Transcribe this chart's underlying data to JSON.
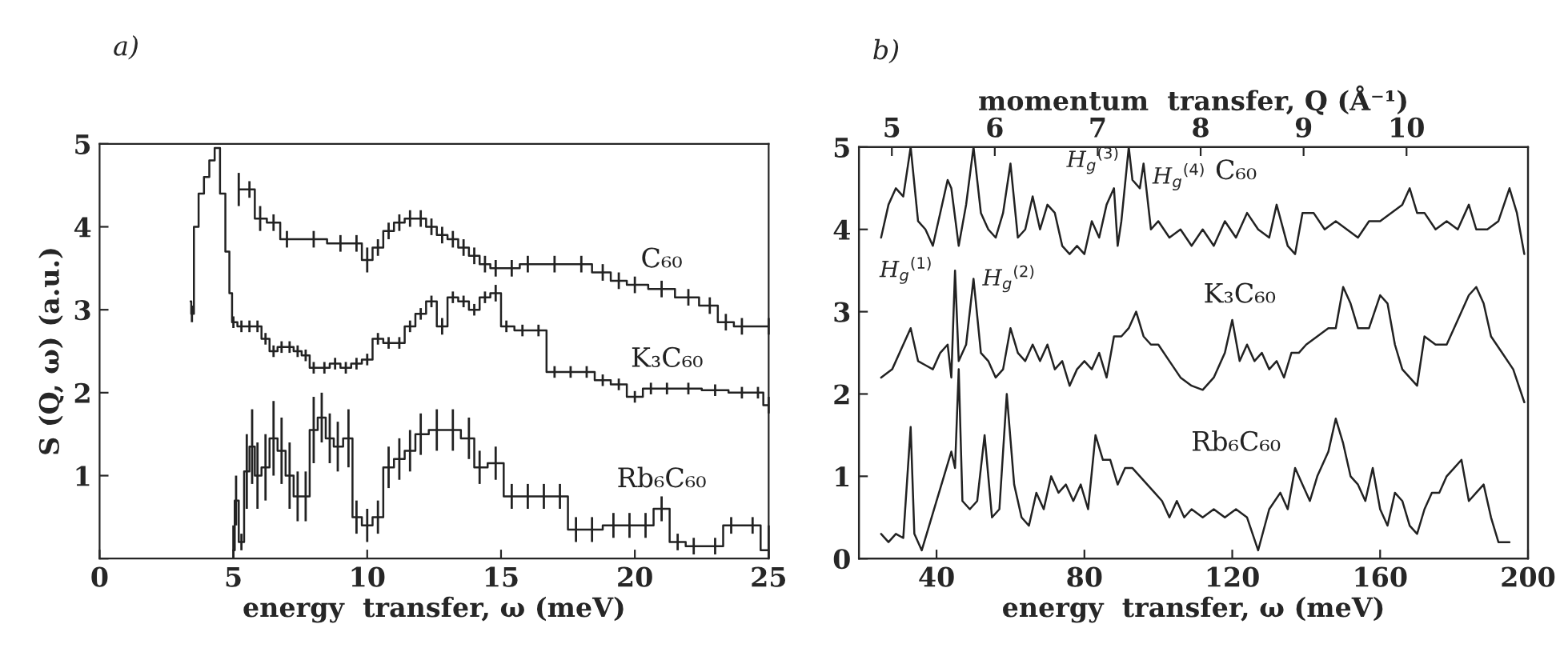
{
  "chart_data": [
    {
      "type": "step",
      "title": "a)",
      "xlabel": "energy  transfer, ω (meV)",
      "ylabel": "S (Q, ω) (a.u.)",
      "xlim": [
        0,
        25
      ],
      "xticks": [
        0,
        5,
        10,
        15,
        20,
        25
      ],
      "ylim": [
        0,
        5
      ],
      "yticks": [
        {
          "value": 0,
          "label": null
        },
        1,
        2,
        3,
        4,
        5
      ],
      "series": [
        {
          "name": "C₆₀",
          "color": "#222222",
          "x": [
            5.2,
            5.6,
            6.0,
            6.5,
            7.0,
            8.0,
            9.0,
            9.6,
            10.0,
            10.4,
            10.8,
            11.2,
            11.6,
            12.0,
            12.4,
            12.8,
            13.2,
            13.6,
            14.0,
            14.4,
            14.8,
            15.4,
            16.0,
            17.0,
            18.0,
            18.8,
            19.4,
            20.0,
            21.0,
            22.0,
            22.8,
            23.4,
            24.0,
            25.0
          ],
          "values": [
            4.45,
            4.45,
            4.1,
            4.05,
            3.85,
            3.85,
            3.8,
            3.8,
            3.6,
            3.75,
            3.95,
            4.05,
            4.1,
            4.1,
            4.0,
            3.9,
            3.85,
            3.75,
            3.65,
            3.55,
            3.5,
            3.5,
            3.55,
            3.55,
            3.55,
            3.45,
            3.35,
            3.3,
            3.25,
            3.15,
            3.05,
            2.85,
            2.8,
            2.8
          ],
          "errors": [
            0.2,
            0.1,
            0.15,
            0.1,
            0.1,
            0.1,
            0.1,
            0.1,
            0.15,
            0.1,
            0.1,
            0.1,
            0.1,
            0.1,
            0.1,
            0.1,
            0.1,
            0.1,
            0.1,
            0.1,
            0.1,
            0.1,
            0.1,
            0.1,
            0.1,
            0.1,
            0.1,
            0.1,
            0.1,
            0.1,
            0.1,
            0.1,
            0.1,
            0.1
          ]
        },
        {
          "name": "K₃C₆₀",
          "color": "#222222",
          "x": [
            3.4,
            3.45,
            3.6,
            3.8,
            4.0,
            4.2,
            4.4,
            4.6,
            4.8,
            4.9,
            5.0,
            5.3,
            5.6,
            5.9,
            6.2,
            6.5,
            6.8,
            7.1,
            7.4,
            7.7,
            8.0,
            8.4,
            8.8,
            9.2,
            9.6,
            10.0,
            10.4,
            10.8,
            11.2,
            11.6,
            12.0,
            12.4,
            12.8,
            13.2,
            13.6,
            14.0,
            14.4,
            14.8,
            15.2,
            15.8,
            16.4,
            17.0,
            17.6,
            18.2,
            18.8,
            19.4,
            20.0,
            20.6,
            21.2,
            22.0,
            23.0,
            24.0,
            24.6,
            25.0
          ],
          "values": [
            3.1,
            2.95,
            4.0,
            4.4,
            4.6,
            4.8,
            4.95,
            4.4,
            3.7,
            3.2,
            2.85,
            2.8,
            2.8,
            2.8,
            2.65,
            2.5,
            2.55,
            2.55,
            2.5,
            2.45,
            2.3,
            2.3,
            2.35,
            2.3,
            2.35,
            2.4,
            2.65,
            2.6,
            2.6,
            2.8,
            2.95,
            3.1,
            2.8,
            3.15,
            3.1,
            3.0,
            3.15,
            3.2,
            2.8,
            2.75,
            2.75,
            2.25,
            2.25,
            2.25,
            2.15,
            2.1,
            1.95,
            2.05,
            2.05,
            2.05,
            2.03,
            2.0,
            2.0,
            1.85
          ],
          "errors": [
            null,
            0.1,
            null,
            null,
            null,
            null,
            null,
            null,
            null,
            null,
            0.07,
            0.07,
            0.07,
            0.07,
            0.07,
            0.07,
            0.07,
            0.07,
            0.07,
            0.07,
            0.07,
            0.07,
            0.07,
            0.07,
            0.07,
            0.07,
            0.07,
            0.07,
            0.07,
            0.07,
            0.07,
            0.07,
            0.1,
            0.07,
            0.07,
            0.07,
            0.07,
            0.1,
            0.07,
            0.07,
            0.07,
            0.07,
            0.07,
            0.07,
            0.07,
            0.07,
            0.07,
            0.07,
            0.07,
            0.07,
            0.07,
            0.07,
            0.07,
            0.1
          ]
        },
        {
          "name": "Rb₆C₆₀",
          "color": "#222222",
          "x": [
            5.0,
            5.1,
            5.3,
            5.5,
            5.7,
            5.9,
            6.2,
            6.5,
            6.8,
            7.1,
            7.4,
            7.7,
            8.0,
            8.3,
            8.6,
            8.9,
            9.3,
            9.6,
            10.0,
            10.4,
            10.8,
            11.2,
            11.6,
            12.0,
            12.6,
            13.2,
            13.8,
            14.2,
            14.8,
            15.4,
            16.0,
            16.6,
            17.2,
            17.8,
            18.4,
            19.2,
            19.8,
            20.4,
            21.0,
            21.6,
            22.2,
            23.0,
            23.6,
            24.4,
            25.0
          ],
          "values": [
            0.1,
            0.7,
            0.2,
            1.05,
            1.35,
            1.0,
            1.1,
            1.45,
            1.3,
            1.0,
            0.75,
            0.75,
            1.55,
            1.7,
            1.45,
            1.35,
            1.45,
            0.5,
            0.4,
            0.5,
            1.1,
            1.2,
            1.3,
            1.5,
            1.55,
            1.55,
            1.45,
            1.1,
            1.15,
            0.75,
            0.75,
            0.75,
            0.75,
            0.35,
            0.35,
            0.4,
            0.4,
            0.4,
            0.6,
            0.2,
            0.15,
            0.15,
            0.4,
            0.4,
            0.1
          ],
          "errors": [
            [
              0,
              0.4
            ],
            0.3,
            0.1,
            0.45,
            0.45,
            0.4,
            0.4,
            0.45,
            0.4,
            0.4,
            0.3,
            0.3,
            0.4,
            0.3,
            0.3,
            0.3,
            0.35,
            0.2,
            0.2,
            0.2,
            0.25,
            0.25,
            0.25,
            0.25,
            0.25,
            0.25,
            0.25,
            0.2,
            0.2,
            0.15,
            0.15,
            0.15,
            0.15,
            0.15,
            0.15,
            0.15,
            0.15,
            0.15,
            0.15,
            0.1,
            0.1,
            0.1,
            0.1,
            0.1,
            [
              0,
              0.4
            ]
          ]
        }
      ]
    },
    {
      "type": "line",
      "title": "b)",
      "xlabel": "energy  transfer, ω (meV)",
      "x2label": "momentum  transfer, Q (Å⁻¹)",
      "xlim": [
        19,
        200
      ],
      "xticks": [
        40,
        80,
        120,
        160,
        200
      ],
      "x2lim": [
        4.68,
        11.18
      ],
      "x2ticks": [
        5,
        6,
        7,
        8,
        9,
        10
      ],
      "ylim": [
        0,
        5
      ],
      "yticks": [
        0,
        1,
        2,
        3,
        4,
        5
      ],
      "annotations": [
        {
          "text": "H$_{g}$$^{(1)}$",
          "x": 33,
          "y": 2.8
        },
        {
          "text": "H$_{g}$$^{(2)}$",
          "x": 50,
          "y": 3.4
        },
        {
          "text": "H$_{g}$$^{(3)}$",
          "x": 92,
          "y": 5.0
        },
        {
          "text": "H$_{g}$$^{(4)}$",
          "x": 96,
          "y": 4.8
        }
      ],
      "series": [
        {
          "name": "C₆₀",
          "color": "#222222",
          "x": [
            25,
            27,
            29,
            31,
            33,
            35,
            37,
            39,
            41,
            43,
            44,
            46,
            48,
            50,
            52,
            54,
            56,
            58,
            60,
            62,
            64,
            66,
            68,
            70,
            72,
            74,
            76,
            78,
            80,
            82,
            84,
            86,
            88,
            89,
            90,
            92,
            93,
            95,
            96,
            98,
            100,
            103,
            106,
            109,
            112,
            115,
            118,
            121,
            124,
            127,
            130,
            132,
            135,
            137,
            139,
            142,
            145,
            148,
            151,
            154,
            157,
            160,
            163,
            166,
            168,
            170,
            172,
            175,
            178,
            181,
            184,
            186,
            189,
            192,
            195,
            197,
            199
          ],
          "values": [
            3.9,
            4.3,
            4.5,
            4.4,
            5.0,
            4.1,
            4.0,
            3.8,
            4.2,
            4.6,
            4.5,
            3.8,
            4.3,
            5.0,
            4.2,
            4.0,
            3.9,
            4.2,
            4.8,
            3.9,
            4.0,
            4.4,
            4.0,
            4.3,
            4.2,
            3.8,
            3.7,
            3.8,
            3.7,
            4.1,
            3.9,
            4.3,
            4.5,
            3.8,
            4.1,
            5.0,
            4.6,
            4.5,
            4.8,
            4.0,
            4.1,
            3.9,
            4.0,
            3.8,
            4.0,
            3.8,
            4.1,
            3.9,
            4.2,
            4.0,
            3.9,
            4.3,
            3.8,
            3.7,
            4.2,
            4.2,
            4.0,
            4.1,
            4.0,
            3.9,
            4.1,
            4.1,
            4.2,
            4.3,
            4.5,
            4.2,
            4.2,
            4.0,
            4.1,
            4.0,
            4.3,
            4.0,
            4.0,
            4.1,
            4.5,
            4.2,
            3.7
          ]
        },
        {
          "name": "K₃C₆₀",
          "color": "#222222",
          "x": [
            25,
            28,
            31,
            33,
            35,
            37,
            39,
            41,
            43,
            44,
            45,
            46,
            48,
            50,
            52,
            54,
            56,
            58,
            60,
            62,
            64,
            66,
            68,
            70,
            72,
            74,
            76,
            78,
            80,
            82,
            84,
            86,
            88,
            90,
            92,
            94,
            96,
            98,
            100,
            103,
            106,
            109,
            112,
            115,
            118,
            120,
            122,
            124,
            126,
            128,
            130,
            132,
            134,
            136,
            138,
            140,
            143,
            146,
            148,
            150,
            152,
            154,
            157,
            160,
            162,
            164,
            166,
            168,
            170,
            172,
            175,
            178,
            181,
            184,
            186,
            188,
            190,
            193,
            196,
            199
          ],
          "values": [
            2.2,
            2.3,
            2.6,
            2.8,
            2.4,
            2.35,
            2.3,
            2.5,
            2.6,
            2.2,
            3.5,
            2.4,
            2.6,
            3.4,
            2.5,
            2.4,
            2.2,
            2.3,
            2.8,
            2.5,
            2.4,
            2.6,
            2.4,
            2.6,
            2.3,
            2.4,
            2.1,
            2.3,
            2.4,
            2.3,
            2.5,
            2.2,
            2.7,
            2.7,
            2.8,
            3.0,
            2.7,
            2.6,
            2.6,
            2.4,
            2.2,
            2.1,
            2.05,
            2.2,
            2.5,
            2.9,
            2.4,
            2.6,
            2.4,
            2.5,
            2.3,
            2.4,
            2.2,
            2.5,
            2.5,
            2.6,
            2.7,
            2.8,
            2.8,
            3.3,
            3.1,
            2.8,
            2.8,
            3.2,
            3.1,
            2.6,
            2.3,
            2.2,
            2.1,
            2.7,
            2.6,
            2.6,
            2.9,
            3.2,
            3.3,
            3.1,
            2.7,
            2.5,
            2.3,
            1.9
          ]
        },
        {
          "name": "Rb₆C₆₀",
          "color": "#222222",
          "x": [
            25,
            27,
            29,
            31,
            33,
            34,
            36,
            38,
            40,
            42,
            44,
            45,
            46,
            47,
            49,
            51,
            53,
            55,
            57,
            59,
            61,
            63,
            65,
            67,
            69,
            71,
            73,
            75,
            77,
            79,
            81,
            83,
            85,
            87,
            89,
            91,
            93,
            95,
            97,
            99,
            101,
            103,
            105,
            107,
            109,
            112,
            115,
            118,
            121,
            124,
            127,
            130,
            133,
            135,
            137,
            139,
            141,
            143,
            146,
            148,
            150,
            152,
            154,
            156,
            158,
            160,
            162,
            164,
            166,
            168,
            170,
            172,
            174,
            176,
            178,
            180,
            182,
            184,
            186,
            188,
            190,
            192,
            195
          ],
          "values": [
            0.3,
            0.2,
            0.3,
            0.25,
            1.6,
            0.3,
            0.1,
            0.4,
            0.7,
            1.0,
            1.3,
            1.1,
            2.3,
            0.7,
            0.6,
            0.7,
            1.5,
            0.5,
            0.6,
            2.0,
            0.9,
            0.5,
            0.4,
            0.8,
            0.6,
            1.0,
            0.8,
            0.9,
            0.7,
            0.9,
            0.6,
            1.5,
            1.2,
            1.2,
            0.9,
            1.1,
            1.1,
            1.0,
            0.9,
            0.8,
            0.7,
            0.5,
            0.7,
            0.5,
            0.6,
            0.5,
            0.6,
            0.5,
            0.6,
            0.5,
            0.1,
            0.6,
            0.8,
            0.6,
            1.1,
            0.9,
            0.7,
            1.0,
            1.3,
            1.7,
            1.4,
            1.0,
            0.9,
            0.7,
            1.1,
            0.6,
            0.4,
            0.8,
            0.7,
            0.4,
            0.3,
            0.6,
            0.8,
            0.8,
            1.0,
            1.1,
            1.2,
            0.7,
            0.8,
            0.9,
            0.5,
            0.2,
            0.2
          ]
        }
      ]
    }
  ]
}
